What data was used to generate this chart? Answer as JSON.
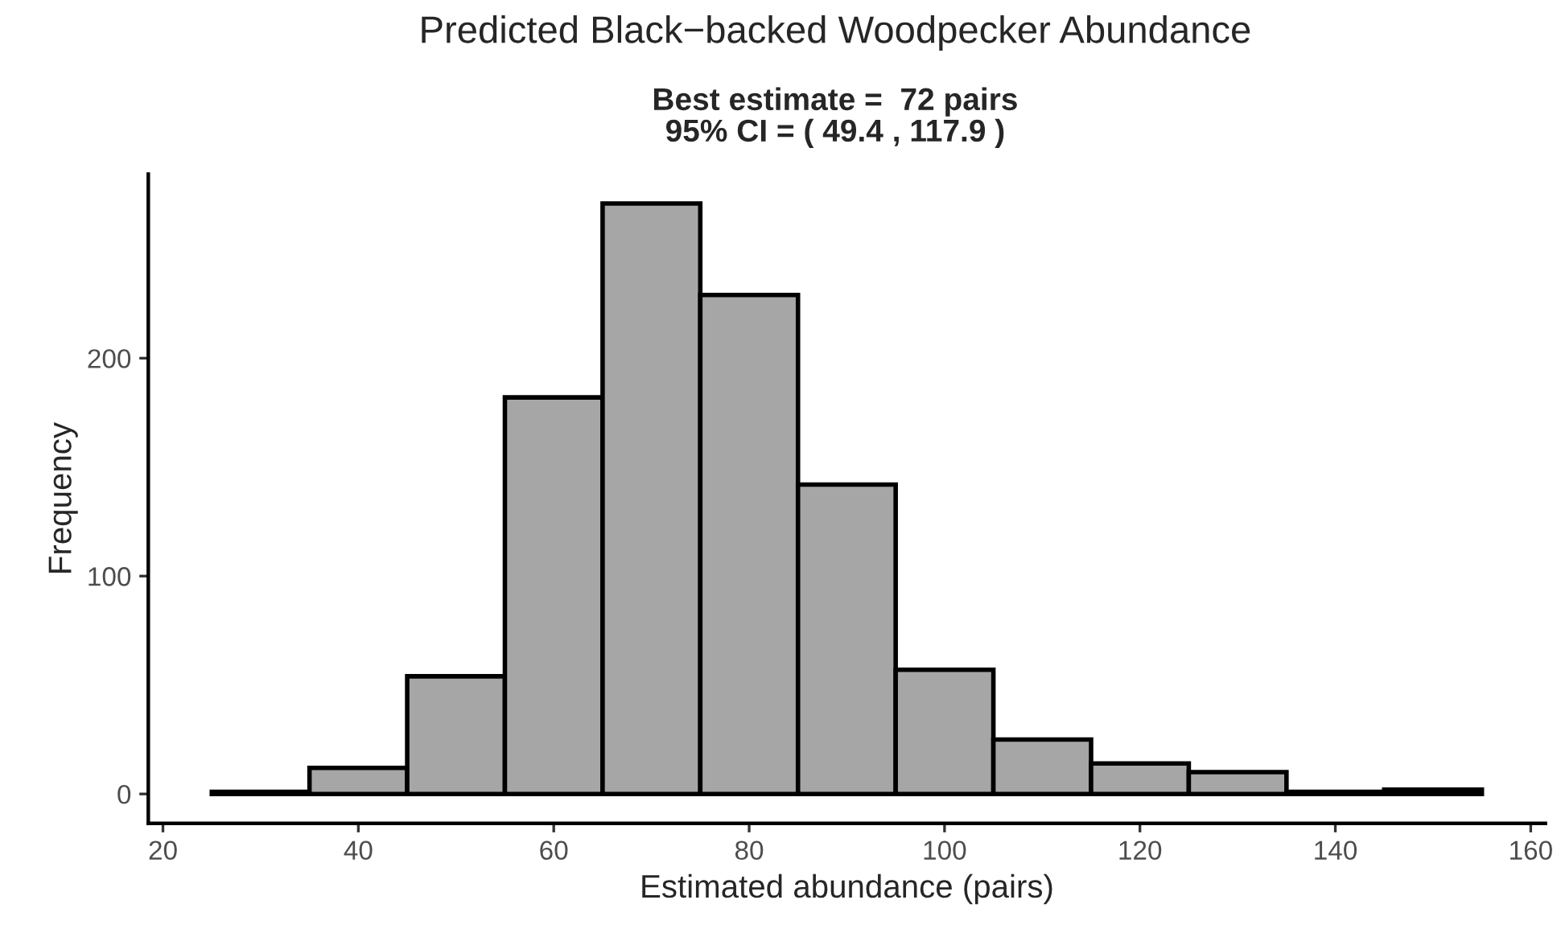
{
  "chart_data": {
    "type": "histogram",
    "title": "Predicted Black−backed Woodpecker Abundance",
    "subtitle": "Best estimate =  72 pairs\n95% CI = ( 49.4 , 117.9 )",
    "xlabel": "Estimated abundance (pairs)",
    "ylabel": "Frequency",
    "bins": [
      25,
      35,
      45,
      55,
      65,
      75,
      85,
      95,
      105,
      115,
      125,
      135,
      145,
      155
    ],
    "values": [
      1,
      12,
      54,
      182,
      271,
      229,
      142,
      57,
      25,
      14,
      10,
      1,
      2
    ],
    "color": "#a6a6a6",
    "xlim": [
      18.5,
      161.5
    ],
    "xticks": [
      20,
      40,
      60,
      80,
      100,
      120,
      140,
      160
    ],
    "ylim": [
      -13.5,
      284.5
    ],
    "yticks": [
      0,
      100,
      200
    ],
    "grid": false
  }
}
